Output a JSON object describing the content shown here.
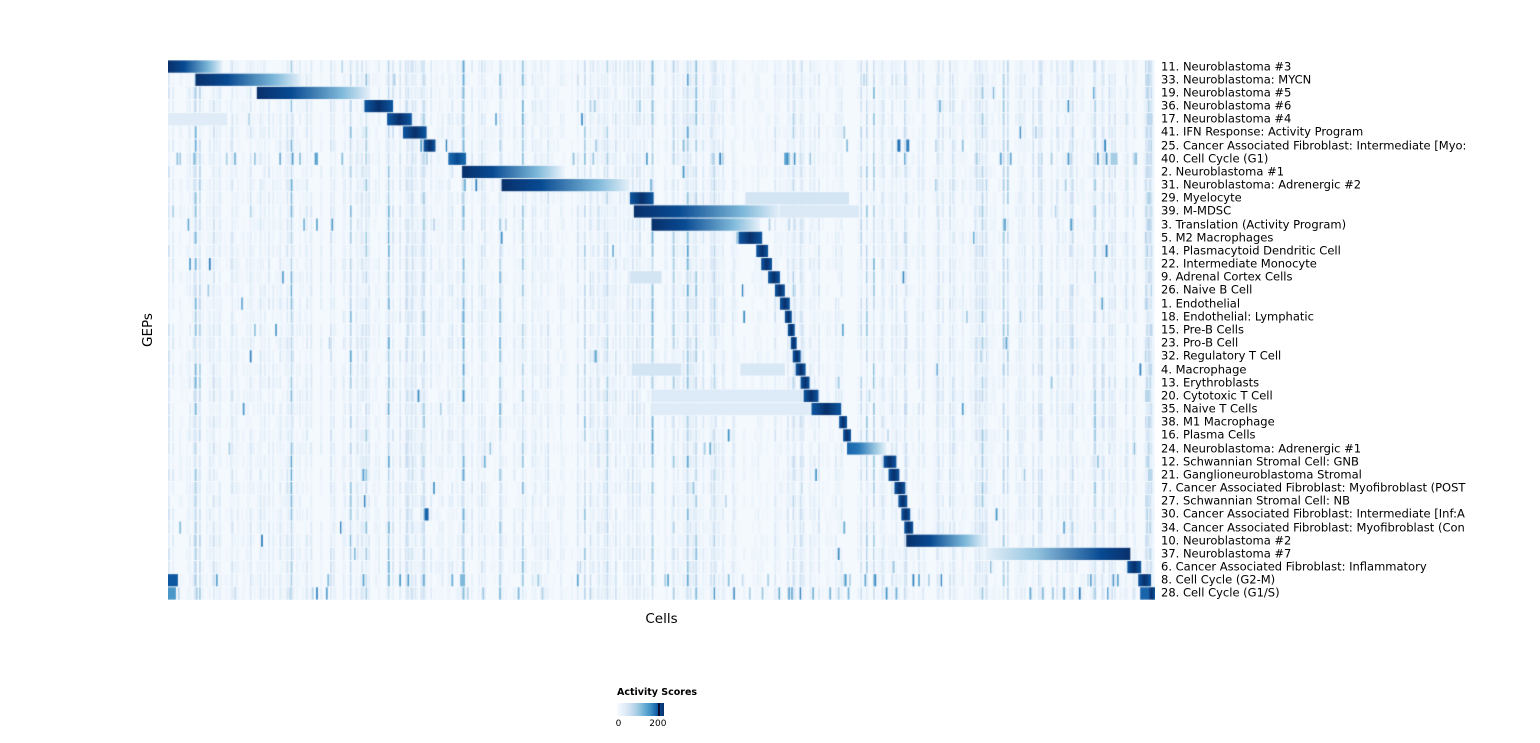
{
  "chart_data": {
    "type": "heatmap",
    "xlabel": "Cells",
    "ylabel": "GEPs",
    "value_range": [
      0,
      200
    ],
    "colormap": [
      "#f7fbff",
      "#deebf7",
      "#c6dbef",
      "#9ecae1",
      "#6baed6",
      "#4292c6",
      "#2171b5",
      "#08519c",
      "#08306b"
    ],
    "legend": {
      "title": "Activity Scores",
      "min_label": "0",
      "max_label": "200",
      "tick_frac": 0.87
    },
    "streaks": [
      {
        "x": 0.99,
        "w": 0.006,
        "i": 0.22
      },
      {
        "x": 0.746,
        "w": 0.002,
        "i": 0.18
      },
      {
        "x": 0.64,
        "w": 0.002,
        "i": 0.15
      },
      {
        "x": 0.915,
        "w": 0.002,
        "i": 0.15
      },
      {
        "x": 0.24,
        "w": 0.002,
        "i": 0.12
      },
      {
        "x": 0.435,
        "w": 0.002,
        "i": 0.12
      }
    ],
    "rows": [
      {
        "label": "11. Neuroblastoma #3",
        "segments": [
          [
            0.0,
            0.055,
            "L",
            1
          ]
        ]
      },
      {
        "label": "33. Neuroblastoma: MYCN",
        "segments": [
          [
            0.028,
            0.135,
            "L",
            1
          ]
        ]
      },
      {
        "label": "19. Neuroblastoma #5",
        "segments": [
          [
            0.09,
            0.205,
            "L",
            1
          ]
        ]
      },
      {
        "label": "36. Neuroblastoma #6",
        "segments": [
          [
            0.199,
            0.228,
            "S",
            1
          ]
        ]
      },
      {
        "label": "17. Neuroblastoma #4",
        "segments": [
          [
            0.222,
            0.247,
            "S",
            1
          ]
        ],
        "ticks": [
          [
            0.0,
            0.06,
            0.12
          ]
        ]
      },
      {
        "label": "41. IFN Response: Activity Program",
        "segments": [
          [
            0.238,
            0.262,
            "S",
            1
          ]
        ]
      },
      {
        "label": "25. Cancer Associated Fibroblast: Intermediate [Myo:",
        "segments": [
          [
            0.259,
            0.271,
            "S",
            1
          ]
        ],
        "ticks": [
          [
            0.739,
            0.742,
            0.75
          ],
          [
            0.748,
            0.751,
            0.7
          ]
        ]
      },
      {
        "label": "40. Cell Cycle (G1)",
        "segments": [
          [
            0.284,
            0.302,
            "S",
            0.9
          ]
        ],
        "speckle": 2,
        "ticks": [
          [
            0.955,
            0.962,
            0.35
          ]
        ]
      },
      {
        "label": "2. Neuroblastoma #1",
        "segments": [
          [
            0.298,
            0.4,
            "L",
            1
          ]
        ]
      },
      {
        "label": "31. Neuroblastoma: Adrenergic #2",
        "segments": [
          [
            0.338,
            0.468,
            "L",
            1
          ]
        ]
      },
      {
        "label": "29. Myelocyte",
        "segments": [
          [
            0.468,
            0.492,
            "S",
            1
          ]
        ],
        "ticks": [
          [
            0.585,
            0.69,
            0.18
          ]
        ]
      },
      {
        "label": "39. M-MDSC",
        "segments": [
          [
            0.472,
            0.62,
            "L",
            1
          ]
        ],
        "ticks": [
          [
            0.62,
            0.7,
            0.14
          ]
        ]
      },
      {
        "label": "3. Translation (Activity Program)",
        "segments": [
          [
            0.49,
            0.6,
            "L",
            1
          ]
        ],
        "speckle": 1
      },
      {
        "label": "5. M2 Macrophages",
        "segments": [
          [
            0.578,
            0.602,
            "S",
            1
          ]
        ]
      },
      {
        "label": "14. Plasmacytoid Dendritic Cell",
        "segments": [
          [
            0.596,
            0.608,
            "S",
            1
          ]
        ]
      },
      {
        "label": "22. Intermediate Monocyte",
        "segments": [
          [
            0.601,
            0.612,
            "S",
            1
          ]
        ]
      },
      {
        "label": "9. Adrenal Cortex Cells",
        "segments": [
          [
            0.608,
            0.62,
            "S",
            1
          ]
        ],
        "ticks": [
          [
            0.468,
            0.5,
            0.18
          ]
        ]
      },
      {
        "label": "26. Naive B Cell",
        "segments": [
          [
            0.615,
            0.625,
            "S",
            1
          ]
        ]
      },
      {
        "label": "1. Endothelial",
        "segments": [
          [
            0.62,
            0.63,
            "S",
            1
          ]
        ]
      },
      {
        "label": "18. Endothelial: Lymphatic",
        "segments": [
          [
            0.625,
            0.632,
            "S",
            1
          ]
        ]
      },
      {
        "label": "15. Pre-B Cells",
        "segments": [
          [
            0.628,
            0.635,
            "S",
            1
          ]
        ]
      },
      {
        "label": "23. Pro-B Cell",
        "segments": [
          [
            0.631,
            0.637,
            "S",
            1
          ]
        ]
      },
      {
        "label": "32. Regulatory T Cell",
        "segments": [
          [
            0.633,
            0.641,
            "S",
            1
          ]
        ]
      },
      {
        "label": "4. Macrophage",
        "segments": [
          [
            0.636,
            0.646,
            "S",
            1
          ]
        ],
        "ticks": [
          [
            0.47,
            0.52,
            0.18
          ],
          [
            0.58,
            0.625,
            0.15
          ]
        ]
      },
      {
        "label": "13. Erythroblasts",
        "segments": [
          [
            0.641,
            0.65,
            "S",
            1
          ]
        ]
      },
      {
        "label": "20. Cytotoxic T Cell",
        "segments": [
          [
            0.644,
            0.659,
            "S",
            1
          ]
        ],
        "ticks": [
          [
            0.49,
            0.64,
            0.13
          ]
        ]
      },
      {
        "label": "35. Naive T Cells",
        "segments": [
          [
            0.652,
            0.682,
            "S",
            1
          ]
        ],
        "ticks": [
          [
            0.49,
            0.65,
            0.12
          ]
        ]
      },
      {
        "label": "38. M1 Macrophage",
        "segments": [
          [
            0.68,
            0.688,
            "S",
            1
          ]
        ]
      },
      {
        "label": "16. Plasma Cells",
        "segments": [
          [
            0.684,
            0.692,
            "S",
            1
          ]
        ]
      },
      {
        "label": "24. Neuroblastoma: Adrenergic #1",
        "segments": [
          [
            0.688,
            0.728,
            "L",
            0.8
          ]
        ]
      },
      {
        "label": "12. Schwannian Stromal Cell: GNB",
        "segments": [
          [
            0.725,
            0.738,
            "S",
            1
          ]
        ]
      },
      {
        "label": "21. Ganglioneuroblastoma Stromal",
        "segments": [
          [
            0.73,
            0.741,
            "S",
            1
          ]
        ]
      },
      {
        "label": "7. Cancer Associated Fibroblast: Myofibroblast (POST",
        "segments": [
          [
            0.736,
            0.747,
            "S",
            1
          ]
        ]
      },
      {
        "label": "27. Schwannian Stromal Cell: NB",
        "segments": [
          [
            0.74,
            0.749,
            "S",
            1
          ]
        ]
      },
      {
        "label": "30. Cancer Associated Fibroblast: Intermediate [Inf:A",
        "segments": [
          [
            0.743,
            0.752,
            "S",
            1
          ]
        ],
        "ticks": [
          [
            0.26,
            0.264,
            0.8
          ]
        ]
      },
      {
        "label": "34. Cancer Associated Fibroblast: Myofibroblast (Con",
        "segments": [
          [
            0.746,
            0.755,
            "S",
            1
          ]
        ]
      },
      {
        "label": "10. Neuroblastoma #2",
        "segments": [
          [
            0.748,
            0.828,
            "L",
            1
          ]
        ]
      },
      {
        "label": "37. Neuroblastoma #7",
        "segments": [
          [
            0.828,
            0.975,
            "R",
            1
          ]
        ]
      },
      {
        "label": "6. Cancer Associated Fibroblast: Inflammatory",
        "segments": [
          [
            0.972,
            0.986,
            "S",
            1
          ]
        ]
      },
      {
        "label": "8. Cell Cycle (G2-M)",
        "segments": [
          [
            0.983,
            0.996,
            "S",
            1
          ]
        ],
        "speckle": 2,
        "ticks": [
          [
            0.0,
            0.01,
            0.85
          ],
          [
            0.296,
            0.301,
            0.45
          ]
        ]
      },
      {
        "label": "28. Cell Cycle (G1/S)",
        "segments": [
          [
            0.993,
            1.0,
            "S",
            1
          ]
        ],
        "speckle": 2,
        "ticks": [
          [
            0.0,
            0.008,
            0.6
          ],
          [
            0.985,
            0.993,
            0.8
          ]
        ]
      }
    ]
  }
}
